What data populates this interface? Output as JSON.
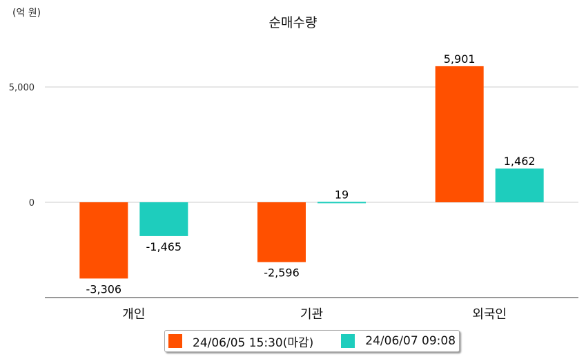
{
  "chart_data": {
    "type": "bar",
    "title": "순매수량",
    "unit_label": "(억 원)",
    "xlabel": "",
    "ylabel": "",
    "categories": [
      "개인",
      "기관",
      "외국인"
    ],
    "series": [
      {
        "name": "24/06/05 15:30(마감)",
        "color": "#ff5000",
        "values": [
          -3306,
          -2596,
          5901
        ],
        "labels": [
          "-3,306",
          "-2,596",
          "5,901"
        ]
      },
      {
        "name": "24/06/07 09:08",
        "color": "#1ecdbd",
        "values": [
          -1465,
          19,
          1462
        ],
        "labels": [
          "-1,465",
          "19",
          "1,462"
        ]
      }
    ],
    "yticks": [
      {
        "value": 0,
        "label": "0"
      },
      {
        "value": 5000,
        "label": "5,000"
      }
    ],
    "ylim": [
      -4130,
      7400
    ],
    "grid": true,
    "legend_position": "bottom"
  }
}
